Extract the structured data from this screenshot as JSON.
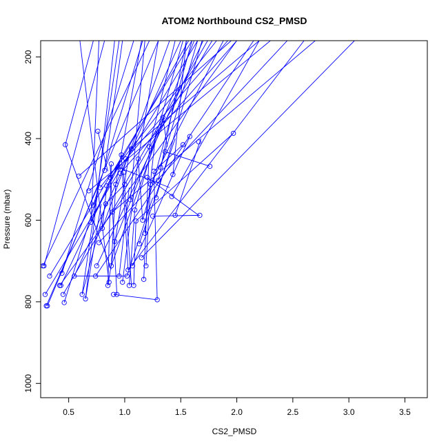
{
  "chart_data": {
    "type": "line",
    "title": "ATOM2 Northbound CS2_PMSD",
    "xlabel": "CS2_PMSD",
    "ylabel": "Pressure (mbar)",
    "xlim": [
      0.25,
      3.7
    ],
    "ylim": [
      1035,
      160
    ],
    "y_reversed": true,
    "grid": false,
    "legend": "none",
    "color": "#0000ff",
    "xticks": [
      0.5,
      1.0,
      1.5,
      2.0,
      2.5,
      3.0,
      3.5
    ],
    "xtick_labels": [
      "0.5",
      "1.0",
      "1.5",
      "2.0",
      "2.5",
      "3.0",
      "3.5"
    ],
    "yticks": [
      200,
      400,
      600,
      800,
      1000
    ],
    "ytick_labels": [
      "200",
      "400",
      "600",
      "800",
      "1000"
    ],
    "points": [
      [
        0.27,
        712
      ],
      [
        0.28,
        712
      ],
      [
        0.29,
        782
      ],
      [
        0.3,
        810
      ],
      [
        0.31,
        810
      ],
      [
        0.33,
        737
      ],
      [
        0.42,
        760
      ],
      [
        0.43,
        760
      ],
      [
        0.44,
        730
      ],
      [
        0.45,
        782
      ],
      [
        0.46,
        802
      ],
      [
        0.47,
        415
      ],
      [
        0.55,
        737
      ],
      [
        0.59,
        492
      ],
      [
        0.62,
        782
      ],
      [
        0.65,
        793
      ],
      [
        0.68,
        528
      ],
      [
        0.7,
        605
      ],
      [
        0.72,
        563
      ],
      [
        0.74,
        737
      ],
      [
        0.75,
        712
      ],
      [
        0.76,
        382
      ],
      [
        0.77,
        655
      ],
      [
        0.78,
        520
      ],
      [
        0.8,
        620
      ],
      [
        0.82,
        478
      ],
      [
        0.83,
        560
      ],
      [
        0.84,
        516
      ],
      [
        0.85,
        760
      ],
      [
        0.86,
        752
      ],
      [
        0.87,
        495
      ],
      [
        0.88,
        712
      ],
      [
        0.88,
        462
      ],
      [
        0.89,
        580
      ],
      [
        0.9,
        782
      ],
      [
        0.91,
        652
      ],
      [
        0.92,
        512
      ],
      [
        0.93,
        782
      ],
      [
        0.94,
        470
      ],
      [
        0.95,
        737
      ],
      [
        0.96,
        485
      ],
      [
        0.97,
        440
      ],
      [
        0.98,
        752
      ],
      [
        0.99,
        483
      ],
      [
        1.0,
        512
      ],
      [
        1.01,
        450
      ],
      [
        1.02,
        737
      ],
      [
        1.03,
        722
      ],
      [
        1.04,
        760
      ],
      [
        1.05,
        550
      ],
      [
        1.06,
        425
      ],
      [
        1.07,
        712
      ],
      [
        1.08,
        760
      ],
      [
        1.09,
        575
      ],
      [
        1.1,
        602
      ],
      [
        1.12,
        450
      ],
      [
        1.13,
        658
      ],
      [
        1.15,
        692
      ],
      [
        1.16,
        600
      ],
      [
        1.17,
        745
      ],
      [
        1.18,
        632
      ],
      [
        1.19,
        712
      ],
      [
        1.2,
        495
      ],
      [
        1.22,
        420
      ],
      [
        1.23,
        512
      ],
      [
        1.25,
        590
      ],
      [
        1.26,
        480
      ],
      [
        1.28,
        545
      ],
      [
        1.29,
        795
      ],
      [
        1.3,
        502
      ],
      [
        1.32,
        470
      ],
      [
        1.34,
        348
      ],
      [
        1.36,
        432
      ],
      [
        1.42,
        542
      ],
      [
        1.43,
        488
      ],
      [
        1.45,
        588
      ],
      [
        1.52,
        415
      ],
      [
        1.58,
        395
      ],
      [
        1.66,
        408
      ],
      [
        1.67,
        588
      ],
      [
        1.76,
        468
      ],
      [
        1.97,
        387
      ]
    ],
    "segments": [
      [
        0.27,
        712,
        1.22,
        160
      ],
      [
        0.28,
        712,
        0.82,
        160
      ],
      [
        0.29,
        782,
        1.65,
        160
      ],
      [
        0.31,
        810,
        1.3,
        160
      ],
      [
        0.33,
        737,
        1.6,
        160
      ],
      [
        0.42,
        760,
        2.0,
        160
      ],
      [
        0.44,
        730,
        1.08,
        160
      ],
      [
        0.45,
        782,
        1.78,
        160
      ],
      [
        0.46,
        802,
        0.75,
        545
      ],
      [
        0.47,
        415,
        0.72,
        160
      ],
      [
        0.47,
        415,
        0.88,
        720
      ],
      [
        0.55,
        737,
        1.5,
        160
      ],
      [
        0.59,
        492,
        1.95,
        160
      ],
      [
        0.62,
        782,
        0.95,
        160
      ],
      [
        0.65,
        793,
        0.91,
        160
      ],
      [
        0.68,
        528,
        2.3,
        160
      ],
      [
        0.7,
        605,
        0.77,
        160
      ],
      [
        0.72,
        563,
        1.16,
        160
      ],
      [
        0.74,
        737,
        2.15,
        160
      ],
      [
        0.75,
        712,
        1.7,
        160
      ],
      [
        0.76,
        382,
        0.85,
        480
      ],
      [
        0.77,
        655,
        2.45,
        160
      ],
      [
        0.78,
        520,
        1.82,
        160
      ],
      [
        0.8,
        620,
        1.4,
        160
      ],
      [
        0.82,
        478,
        0.98,
        160
      ],
      [
        0.84,
        516,
        1.57,
        160
      ],
      [
        0.85,
        760,
        1.05,
        420
      ],
      [
        0.87,
        495,
        1.92,
        160
      ],
      [
        0.88,
        712,
        1.35,
        350
      ],
      [
        0.89,
        580,
        2.7,
        160
      ],
      [
        0.91,
        652,
        1.62,
        160
      ],
      [
        0.92,
        512,
        1.15,
        160
      ],
      [
        0.94,
        470,
        1.4,
        520
      ],
      [
        0.96,
        485,
        2.0,
        160
      ],
      [
        0.98,
        752,
        1.12,
        450
      ],
      [
        1.0,
        512,
        1.74,
        160
      ],
      [
        1.02,
        737,
        1.25,
        545
      ],
      [
        1.03,
        722,
        2.6,
        160
      ],
      [
        1.05,
        550,
        1.18,
        160
      ],
      [
        1.06,
        425,
        2.2,
        160
      ],
      [
        1.07,
        712,
        1.58,
        395
      ],
      [
        1.09,
        575,
        1.52,
        160
      ],
      [
        1.1,
        602,
        1.97,
        387
      ],
      [
        1.12,
        450,
        1.3,
        160
      ],
      [
        1.13,
        658,
        1.45,
        400
      ],
      [
        1.15,
        692,
        3.05,
        160
      ],
      [
        1.16,
        600,
        1.6,
        160
      ],
      [
        1.18,
        632,
        1.28,
        380
      ],
      [
        1.2,
        495,
        1.66,
        588
      ],
      [
        1.22,
        420,
        1.45,
        160
      ],
      [
        1.23,
        512,
        1.88,
        160
      ],
      [
        1.25,
        590,
        1.67,
        588
      ],
      [
        1.26,
        480,
        1.52,
        415
      ],
      [
        1.28,
        545,
        1.69,
        160
      ],
      [
        1.3,
        502,
        1.55,
        160
      ],
      [
        1.32,
        470,
        1.65,
        160
      ],
      [
        1.34,
        348,
        1.38,
        420
      ],
      [
        1.36,
        432,
        1.76,
        468
      ],
      [
        1.42,
        542,
        2.2,
        160
      ],
      [
        1.43,
        488,
        1.55,
        160
      ],
      [
        1.45,
        588,
        1.68,
        400
      ],
      [
        0.86,
        752,
        0.6,
        160
      ],
      [
        0.9,
        782,
        1.29,
        795
      ],
      [
        0.93,
        782,
        0.87,
        465
      ],
      [
        0.95,
        737,
        1.04,
        520
      ],
      [
        0.3,
        810,
        0.78,
        505
      ],
      [
        0.43,
        760,
        0.98,
        440
      ],
      [
        0.62,
        782,
        0.83,
        560
      ],
      [
        0.65,
        793,
        0.79,
        560
      ],
      [
        0.88,
        462,
        0.85,
        760
      ],
      [
        0.97,
        440,
        1.03,
        722
      ],
      [
        0.99,
        483,
        1.06,
        760
      ],
      [
        1.08,
        760,
        1.1,
        602
      ],
      [
        1.17,
        745,
        1.22,
        420
      ],
      [
        1.19,
        712,
        1.23,
        512
      ],
      [
        1.04,
        760,
        1.09,
        575
      ],
      [
        0.55,
        737,
        0.95,
        737
      ],
      [
        0.74,
        737,
        1.02,
        737
      ],
      [
        0.84,
        516,
        0.8,
        620
      ],
      [
        0.92,
        512,
        0.88,
        712
      ],
      [
        1.29,
        795,
        1.26,
        480
      ],
      [
        0.7,
        605,
        0.94,
        470
      ],
      [
        0.83,
        560,
        1.0,
        512
      ],
      [
        1.16,
        600,
        1.12,
        450
      ]
    ]
  }
}
